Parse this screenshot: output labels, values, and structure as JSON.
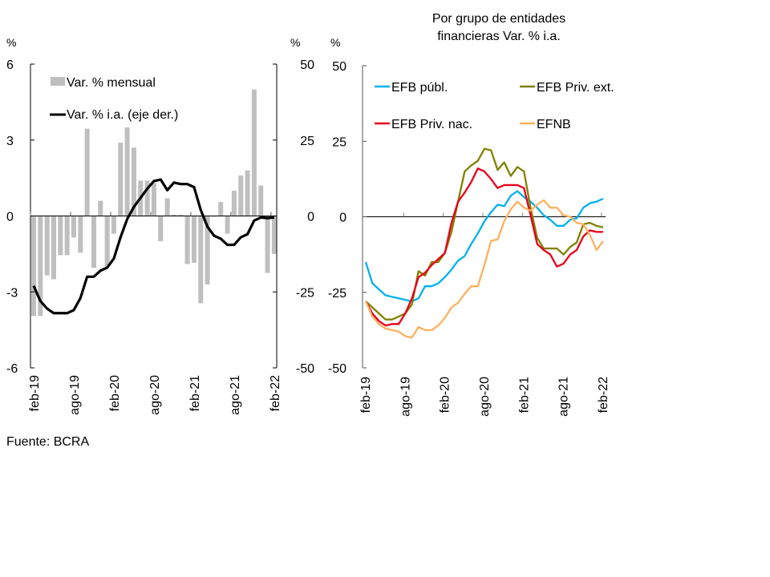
{
  "source": "Fuente: BCRA",
  "chart_data": [
    {
      "type": "bar",
      "title": "",
      "ylabel": "%",
      "y2label": "%",
      "ylim": [
        -6,
        6
      ],
      "y2lim": [
        -50,
        50
      ],
      "yticks": [
        "6",
        "3",
        "0",
        "-3",
        "-6"
      ],
      "y2ticks": [
        "50",
        "25",
        "0",
        "-25",
        "-50"
      ],
      "xticks": [
        "feb-19",
        "ago-19",
        "feb-20",
        "ago-20",
        "feb-21",
        "ago-21",
        "feb-22"
      ],
      "legend": [
        "Var. % mensual",
        "Var. % i.a. (eje der.)"
      ],
      "legend_position": "top-left",
      "series": [
        {
          "name": "Var. % mensual",
          "kind": "bar",
          "axis": "left",
          "color": "#bfbfbf",
          "values": [
            -3.95,
            -3.95,
            -2.35,
            -2.5,
            -1.55,
            -1.55,
            -0.85,
            -1.45,
            3.45,
            -2.05,
            0.6,
            -2.0,
            -0.7,
            2.9,
            3.5,
            2.7,
            1.4,
            1.4,
            1.3,
            -1.0,
            0.7,
            0.05,
            0.05,
            -1.9,
            -1.85,
            -3.45,
            -2.7,
            0.0,
            0.55,
            -0.7,
            1.0,
            1.6,
            1.8,
            5.0,
            1.2,
            -2.25,
            -1.5
          ]
        },
        {
          "name": "Var. % i.a. (eje der.)",
          "kind": "line",
          "axis": "right",
          "color": "#000000",
          "values": [
            -23,
            -28,
            -30.5,
            -32,
            -32,
            -32,
            -31,
            -27,
            -20,
            -20,
            -18,
            -17,
            -14,
            -7,
            -1,
            3,
            6,
            9,
            11.5,
            12,
            8.5,
            11,
            10.5,
            10.5,
            9.5,
            2,
            -3.5,
            -6.5,
            -7.5,
            -9.5,
            -9.5,
            -7,
            -6,
            -1.5,
            -0.5,
            -0.7,
            -0.5
          ]
        }
      ]
    },
    {
      "type": "line",
      "title": "Por grupo de entidades financieras Var. % i.a.",
      "title_lines": [
        "Por grupo de entidades",
        "financieras Var. % i.a."
      ],
      "ylabel": "%",
      "ylim": [
        -50,
        50
      ],
      "yticks": [
        "50",
        "25",
        "0",
        "-25",
        "-50"
      ],
      "xticks": [
        "feb-19",
        "ago-19",
        "feb-20",
        "ago-20",
        "feb-21",
        "ago-21",
        "feb-22"
      ],
      "legend_position": "top",
      "series": [
        {
          "name": "EFB públ.",
          "color": "#00b0f0",
          "values": [
            -15,
            -22,
            -24,
            -26,
            -26.5,
            -27,
            -27.5,
            -28,
            -27,
            -23,
            -23,
            -22,
            -20,
            -17.5,
            -14.5,
            -13,
            -9,
            -5.5,
            -1.5,
            1.5,
            4,
            3.5,
            7,
            8.5,
            6.5,
            5,
            3,
            0.5,
            -1,
            -3,
            -3,
            -1,
            -0.5,
            3,
            4.5,
            5,
            6
          ]
        },
        {
          "name": "EFB Priv. ext.",
          "color": "#808000",
          "values": [
            -28,
            -30,
            -32,
            -34,
            -34,
            -33,
            -32,
            -29,
            -18,
            -19.5,
            -15,
            -15,
            -12,
            -5,
            5,
            15,
            17,
            18.5,
            22.5,
            22,
            15.5,
            18,
            13.5,
            16.5,
            15,
            3,
            -7,
            -10.5,
            -10.5,
            -10.5,
            -12.5,
            -10,
            -8.5,
            -2.5,
            -2,
            -3,
            -3.5
          ]
        },
        {
          "name": "EFB Priv. nac.",
          "color": "#e8001c",
          "values": [
            -28,
            -32,
            -34.5,
            -36,
            -35.5,
            -35.5,
            -32,
            -27,
            -20,
            -18.5,
            -16,
            -14,
            -12,
            -2,
            5,
            8,
            11.5,
            16,
            15,
            12.5,
            9.5,
            10.5,
            10.5,
            10.5,
            9.5,
            0.5,
            -9,
            -11,
            -12.5,
            -16.5,
            -15.5,
            -12.5,
            -11,
            -6.5,
            -4.5,
            -5,
            -5
          ]
        },
        {
          "name": "EFNB",
          "color": "#ffb060",
          "values": [
            -28,
            -33,
            -35.5,
            -37,
            -37.5,
            -38,
            -39.5,
            -40,
            -36.5,
            -37.5,
            -37.5,
            -36,
            -33.5,
            -30,
            -28.5,
            -25.5,
            -23,
            -23,
            -16,
            -8,
            -7.5,
            -1.5,
            2.5,
            5,
            3,
            2,
            4,
            5.5,
            3,
            3,
            0.5,
            0,
            -2,
            -2.5,
            -6,
            -11,
            -8
          ]
        }
      ]
    }
  ]
}
